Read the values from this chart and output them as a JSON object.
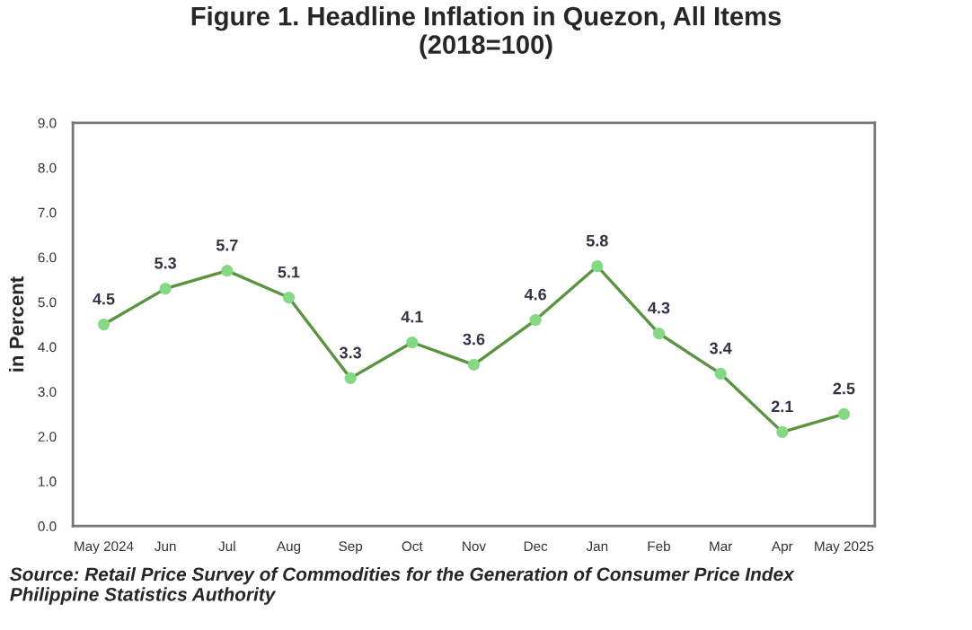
{
  "chart_data": {
    "type": "line",
    "title": "Figure 1. Headline Inflation in Quezon, All Items\n(2018=100)",
    "ylabel": "in Percent",
    "categories": [
      "May 2024",
      "Jun",
      "Jul",
      "Aug",
      "Sep",
      "Oct",
      "Nov",
      "Dec",
      "Jan",
      "Feb",
      "Mar",
      "Apr",
      "May 2025"
    ],
    "series": [
      {
        "color": "#5a9440",
        "values": [
          4.5,
          5.3,
          5.7,
          5.1,
          3.3,
          4.1,
          3.6,
          4.6,
          5.8,
          4.3,
          3.4,
          2.1,
          2.5
        ]
      }
    ],
    "ylim": [
      0,
      9
    ],
    "yticks": [
      {
        "value": 0,
        "label": "0.0"
      },
      {
        "value": 1,
        "label": "1.0"
      },
      {
        "value": 2,
        "label": "2.0"
      },
      {
        "value": 3,
        "label": "3.0"
      },
      {
        "value": 4,
        "label": "4.0"
      },
      {
        "value": 5,
        "label": "5.0"
      },
      {
        "value": 6,
        "label": "6.0"
      },
      {
        "value": 7,
        "label": "7.0"
      },
      {
        "value": 8,
        "label": "8.0"
      },
      {
        "value": 9,
        "label": "9.0"
      }
    ],
    "marker": "circle",
    "line_style": "solid",
    "grid": false,
    "legend": false,
    "data_labels": true,
    "annotations": [
      "Source: Retail Price Survey of Commodities for the Generation of Consumer Price Index\nPhilippine Statistics Authority"
    ]
  }
}
